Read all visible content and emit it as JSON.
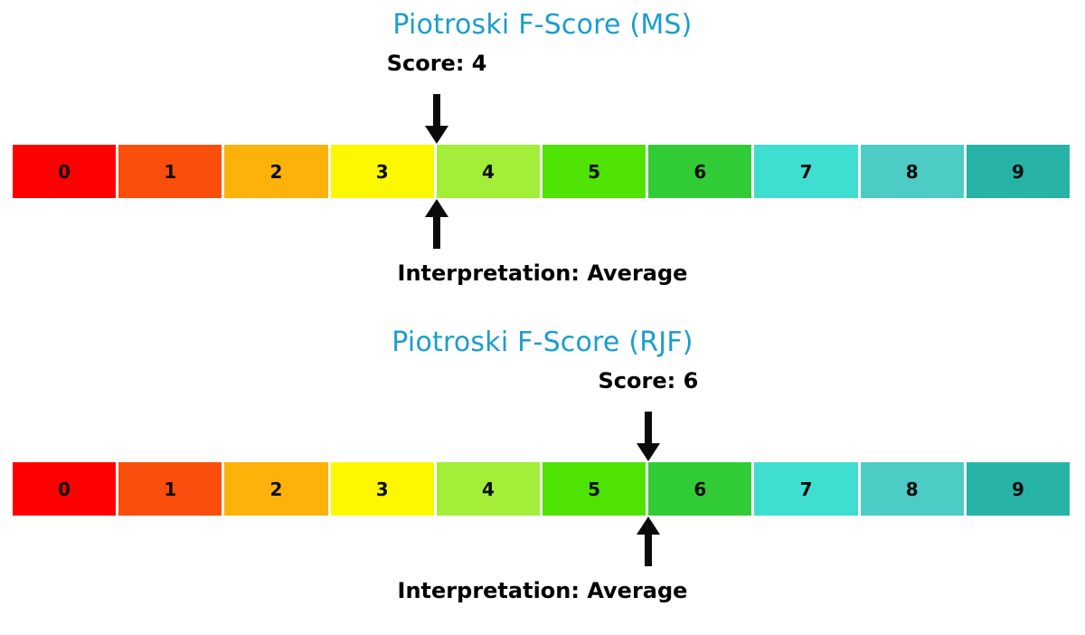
{
  "palette": {
    "background": "#ffffff",
    "title_color": "#1b9ecd",
    "text_color": "#000000",
    "arrow_color": "#0a0a0a"
  },
  "scale": {
    "labels": [
      "0",
      "1",
      "2",
      "3",
      "4",
      "5",
      "6",
      "7",
      "8",
      "9"
    ],
    "colors": [
      "#fe0000",
      "#fa4e0c",
      "#fcb20a",
      "#fdf800",
      "#a2ee38",
      "#4fe303",
      "#31cc35",
      "#40ded0",
      "#4dccc6",
      "#27b3a6"
    ]
  },
  "charts": [
    {
      "title": "Piotroski F-Score (MS)",
      "score": 4,
      "score_label": "Score: 4",
      "interpretation_label": "Interpretation: Average"
    },
    {
      "title": "Piotroski F-Score (RJF)",
      "score": 6,
      "score_label": "Score: 6",
      "interpretation_label": "Interpretation: Average"
    }
  ],
  "chart_data": [
    {
      "type": "bar",
      "subtype": "discrete-color-scale-gauge",
      "title": "Piotroski F-Score (MS)",
      "categories": [
        "0",
        "1",
        "2",
        "3",
        "4",
        "5",
        "6",
        "7",
        "8",
        "9"
      ],
      "cell_colors": [
        "#fe0000",
        "#fa4e0c",
        "#fcb20a",
        "#fdf800",
        "#a2ee38",
        "#4fe303",
        "#31cc35",
        "#40ded0",
        "#4dccc6",
        "#27b3a6"
      ],
      "score": 4,
      "score_annotation": "Score: 4",
      "interpretation_annotation": "Interpretation: Average",
      "scale_range": [
        0,
        9
      ],
      "axes": "none",
      "grid": false,
      "legend": false
    },
    {
      "type": "bar",
      "subtype": "discrete-color-scale-gauge",
      "title": "Piotroski F-Score (RJF)",
      "categories": [
        "0",
        "1",
        "2",
        "3",
        "4",
        "5",
        "6",
        "7",
        "8",
        "9"
      ],
      "cell_colors": [
        "#fe0000",
        "#fa4e0c",
        "#fcb20a",
        "#fdf800",
        "#a2ee38",
        "#4fe303",
        "#31cc35",
        "#40ded0",
        "#4dccc6",
        "#27b3a6"
      ],
      "score": 6,
      "score_annotation": "Score: 6",
      "interpretation_annotation": "Interpretation: Average",
      "scale_range": [
        0,
        9
      ],
      "axes": "none",
      "grid": false,
      "legend": false
    }
  ]
}
